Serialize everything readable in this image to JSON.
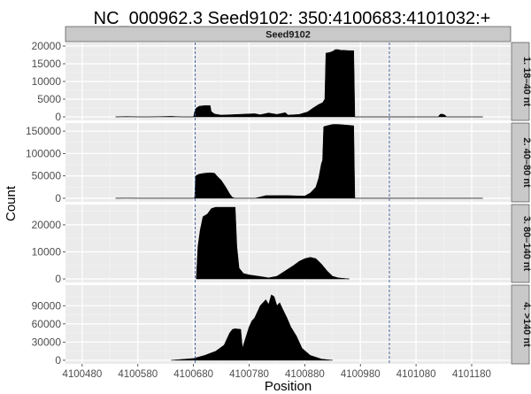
{
  "chart_data": {
    "type": "area",
    "title": "NC_000962.3 Seed9102: 350:4100683:4101032:+",
    "facet_label": "Seed9102",
    "xlabel": "Position",
    "ylabel": "Count",
    "xlim": [
      4100450,
      4101250
    ],
    "x_ticks": [
      4100480,
      4100580,
      4100680,
      4100780,
      4100880,
      4100980,
      4101080,
      4101180
    ],
    "vlines": [
      4100683,
      4101032
    ],
    "grid": true,
    "panels": [
      {
        "name": "1. 18–40 nt",
        "ylim": [
          -1000,
          21000
        ],
        "y_ticks": [
          0,
          5000,
          10000,
          15000,
          20000
        ],
        "x": [
          4100540,
          4100560,
          4100580,
          4100600,
          4100640,
          4100660,
          4100680,
          4100682,
          4100685,
          4100690,
          4100700,
          4100710,
          4100712,
          4100718,
          4100730,
          4100760,
          4100790,
          4100800,
          4100815,
          4100830,
          4100845,
          4100850,
          4100870,
          4100885,
          4100895,
          4100905,
          4100912,
          4100916,
          4100918,
          4100925,
          4100930,
          4100935,
          4100940,
          4100945,
          4100950,
          4100960,
          4100968,
          4100970,
          4100985,
          4101040,
          4101120,
          4101123,
          4101126,
          4101129,
          4101132,
          4101135,
          4101200
        ],
        "y": [
          0,
          100,
          0,
          0,
          150,
          0,
          0,
          1500,
          2500,
          3000,
          3200,
          3200,
          1500,
          800,
          500,
          700,
          900,
          600,
          1100,
          700,
          1200,
          500,
          700,
          1400,
          2500,
          3500,
          4000,
          5000,
          18000,
          18200,
          18500,
          19000,
          19000,
          18800,
          18800,
          18700,
          18700,
          0,
          0,
          0,
          0,
          700,
          800,
          700,
          500,
          0,
          0
        ]
      },
      {
        "name": "2. 40–80 nt",
        "ylim": [
          -8000,
          168000
        ],
        "y_ticks": [
          0,
          50000,
          100000,
          150000
        ],
        "x": [
          4100540,
          4100560,
          4100580,
          4100682,
          4100684,
          4100690,
          4100700,
          4100710,
          4100718,
          4100722,
          4100730,
          4100738,
          4100745,
          4100750,
          4100755,
          4100765,
          4100790,
          4100800,
          4100810,
          4100850,
          4100880,
          4100890,
          4100900,
          4100905,
          4100908,
          4100910,
          4100912,
          4100914,
          4100920,
          4100930,
          4100940,
          4100950,
          4100960,
          4100968,
          4100970,
          4100980,
          4101200
        ],
        "y": [
          0,
          400,
          0,
          0,
          50000,
          54000,
          56000,
          57000,
          56000,
          50000,
          40000,
          25000,
          10000,
          2000,
          0,
          0,
          0,
          3000,
          6000,
          6000,
          5000,
          12000,
          25000,
          45000,
          65000,
          78000,
          85000,
          160000,
          162000,
          165000,
          165000,
          164000,
          163000,
          162000,
          0,
          0,
          0
        ]
      },
      {
        "name": "3. 80–140 nt",
        "ylim": [
          -1300,
          27500
        ],
        "y_ticks": [
          0,
          10000,
          20000
        ],
        "x": [
          4100685,
          4100688,
          4100692,
          4100697,
          4100705,
          4100712,
          4100720,
          4100730,
          4100740,
          4100755,
          4100758,
          4100762,
          4100770,
          4100780,
          4100800,
          4100815,
          4100830,
          4100845,
          4100860,
          4100870,
          4100880,
          4100890,
          4100900,
          4100910,
          4100920,
          4100930,
          4100940,
          4100960
        ],
        "y": [
          0,
          12000,
          18000,
          23000,
          24000,
          26000,
          26500,
          26500,
          26500,
          26500,
          12000,
          4000,
          2000,
          1500,
          900,
          400,
          1000,
          3000,
          5000,
          6500,
          7500,
          8000,
          7500,
          5500,
          3000,
          1000,
          400,
          0
        ]
      },
      {
        "name": "4. >140 nt",
        "ylim": [
          -6000,
          124000
        ],
        "y_ticks": [
          0,
          30000,
          60000,
          90000
        ],
        "x": [
          4100640,
          4100660,
          4100680,
          4100700,
          4100720,
          4100735,
          4100745,
          4100750,
          4100755,
          4100765,
          4100768,
          4100780,
          4100785,
          4100790,
          4100800,
          4100810,
          4100815,
          4100820,
          4100825,
          4100830,
          4100835,
          4100840,
          4100848,
          4100855,
          4100865,
          4100875,
          4100890,
          4100910,
          4100930
        ],
        "y": [
          0,
          1500,
          3000,
          8000,
          15000,
          25000,
          45000,
          51000,
          52000,
          51000,
          20000,
          55000,
          65000,
          70000,
          90000,
          100000,
          92000,
          108000,
          105000,
          90000,
          95000,
          85000,
          70000,
          55000,
          40000,
          20000,
          8000,
          2000,
          0
        ]
      }
    ]
  }
}
